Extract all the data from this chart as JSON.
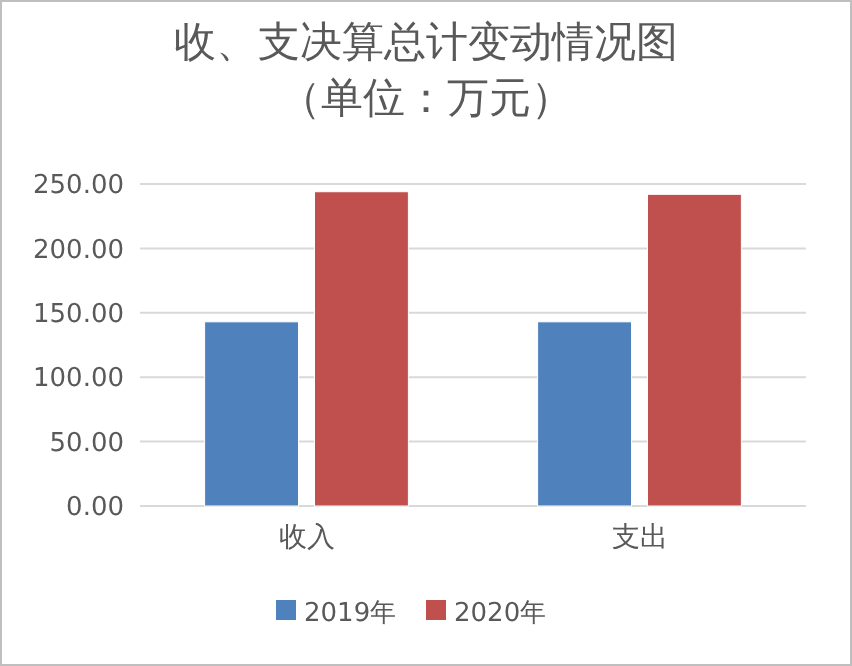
{
  "chart_data": {
    "type": "bar",
    "title": "收、支决算总计变动情况图",
    "subtitle": "（单位：万元）",
    "categories": [
      "收入",
      "支出"
    ],
    "series": [
      {
        "name": "2019年",
        "color": "#4f81bd",
        "values": [
          143,
          143
        ]
      },
      {
        "name": "2020年",
        "color": "#c0504d",
        "values": [
          244,
          242
        ]
      }
    ],
    "ylim": [
      0,
      250
    ],
    "yticks": [
      {
        "value": 0,
        "label": "0.00"
      },
      {
        "value": 50,
        "label": "50.00"
      },
      {
        "value": 100,
        "label": "100.00"
      },
      {
        "value": 150,
        "label": "150.00"
      },
      {
        "value": 200,
        "label": "200.00"
      },
      {
        "value": 250,
        "label": "250.00"
      }
    ],
    "grid": "y",
    "legend": "bottom"
  }
}
